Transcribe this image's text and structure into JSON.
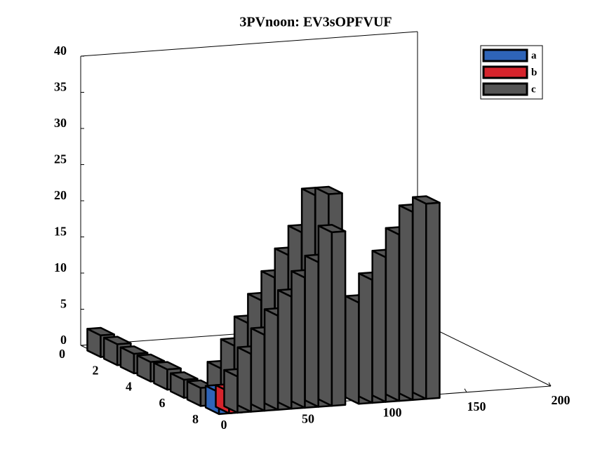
{
  "chart_data": {
    "type": "bar3",
    "title": "3PVnoon: EV3sOPFVUF",
    "xlim": [
      0,
      8
    ],
    "xticks": [
      0,
      2,
      4,
      6,
      8
    ],
    "ylim": [
      0,
      200
    ],
    "yticks": [
      0,
      50,
      100,
      150,
      200
    ],
    "zlim": [
      0,
      40
    ],
    "zticks": [
      0,
      5,
      10,
      15,
      20,
      25,
      30,
      35,
      40
    ],
    "legend": "top-right",
    "series": [
      {
        "name": "a",
        "color": "#2e64b8",
        "x": [
          8
        ],
        "y": [
          3
        ],
        "values": [
          3
        ]
      },
      {
        "name": "b",
        "color": "#d6242c",
        "x": [
          8
        ],
        "y": [
          9
        ],
        "values": [
          3
        ]
      },
      {
        "name": "c",
        "color": "#555555",
        "x": [
          1,
          2,
          3,
          4,
          5,
          6,
          7,
          7,
          7,
          7,
          7,
          7,
          7,
          7,
          7,
          7,
          8,
          8,
          8,
          8,
          8,
          8,
          8,
          8,
          8,
          8,
          8,
          8,
          8,
          8
        ],
        "y": [
          2,
          2,
          2,
          2,
          2,
          2,
          2,
          14,
          22,
          30,
          38,
          46,
          54,
          62,
          70,
          78,
          14,
          22,
          30,
          38,
          46,
          54,
          62,
          70,
          86,
          94,
          102,
          110,
          118,
          126
        ],
        "values": [
          3,
          2.9,
          2.7,
          2.7,
          2.8,
          2.5,
          2.5,
          5,
          8,
          11,
          14,
          17,
          20,
          23,
          28,
          28,
          5,
          8,
          10.5,
          13,
          15.5,
          18,
          20,
          24,
          14,
          17,
          20,
          23,
          26,
          27
        ]
      }
    ]
  }
}
